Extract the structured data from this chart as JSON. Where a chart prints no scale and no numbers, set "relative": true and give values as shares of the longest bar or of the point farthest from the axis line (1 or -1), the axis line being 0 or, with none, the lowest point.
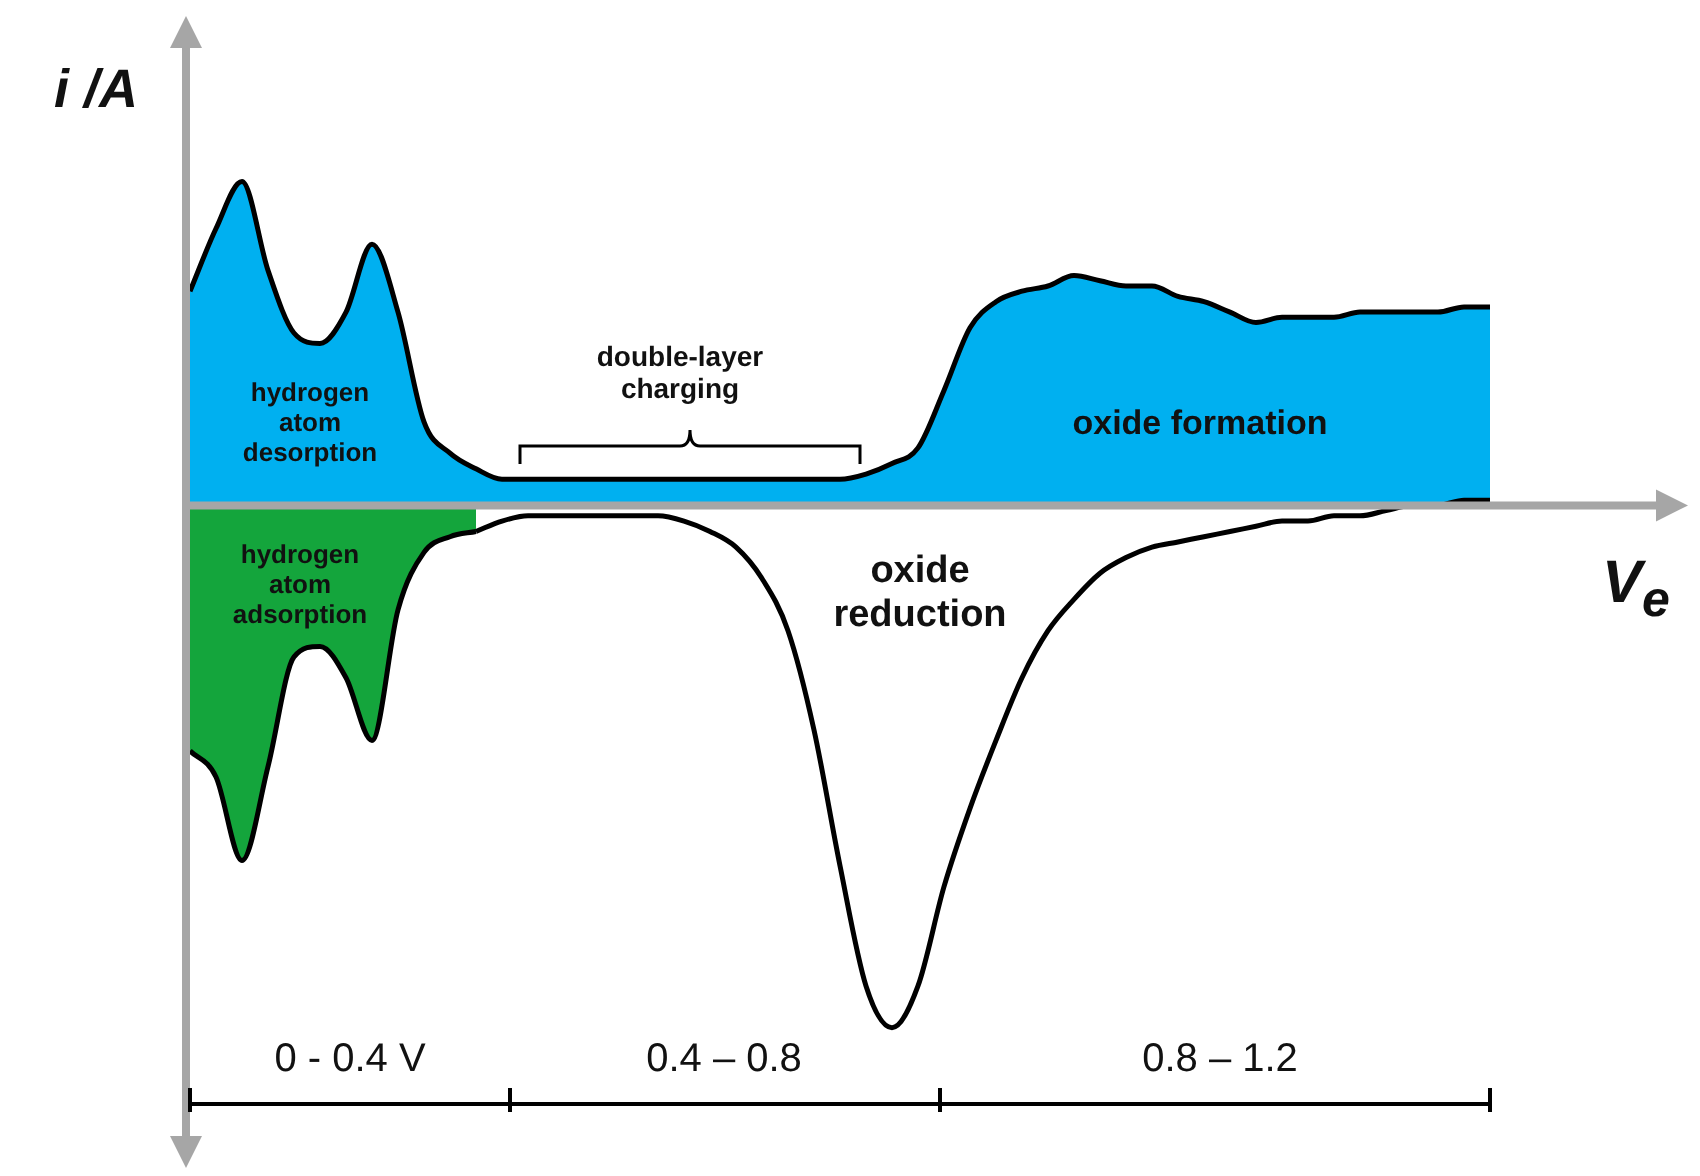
{
  "chart_data": {
    "type": "area",
    "relative": true,
    "ylabel": "i /A",
    "xlabel": "V$_{e}$",
    "categories": [
      null,
      null,
      null,
      null,
      null,
      null,
      null,
      null,
      null,
      null,
      null,
      null,
      null,
      null,
      null,
      null,
      null,
      null,
      null,
      null,
      null,
      null,
      null,
      null,
      null,
      null,
      null,
      null,
      null,
      null,
      null,
      null,
      null,
      null,
      null,
      null,
      null,
      null,
      null,
      null,
      null,
      null,
      null,
      null,
      null,
      null,
      null,
      null,
      null,
      null,
      null
    ],
    "series": [
      {
        "type": "area",
        "color": "#00b0f0",
        "values": [
          0.41,
          0.53,
          0.62,
          0.45,
          0.33,
          0.31,
          0.37,
          0.5,
          0.37,
          0.16,
          0.1,
          0.07,
          0.05,
          0.05,
          0.05,
          0.05,
          0.05,
          0.05,
          0.05,
          0.05,
          0.05,
          0.05,
          0.05,
          0.05,
          0.05,
          0.05,
          0.06,
          0.08,
          0.11,
          0.22,
          0.34,
          0.39,
          0.41,
          0.42,
          0.44,
          0.43,
          0.42,
          0.42,
          0.4,
          0.39,
          0.37,
          0.35,
          0.36,
          0.36,
          0.36,
          0.37,
          0.37,
          0.37,
          0.37,
          0.38,
          0.38
        ]
      },
      {
        "type": "area",
        "color": "#14a53c",
        "values": [
          -0.47,
          -0.52,
          -0.68,
          -0.5,
          -0.29,
          -0.27,
          -0.33,
          -0.45,
          -0.2,
          -0.09,
          -0.06,
          -0.05,
          null,
          null,
          null,
          null,
          null,
          null,
          null,
          null,
          null,
          null,
          null,
          null,
          null,
          null,
          null,
          null,
          null,
          null,
          null,
          null,
          null,
          null,
          null,
          null,
          null,
          null,
          null,
          null,
          null,
          null,
          null,
          null,
          null,
          null,
          null,
          null,
          null,
          null,
          null
        ]
      },
      {
        "type": "line",
        "color": "#000000",
        "values": [
          null,
          null,
          null,
          null,
          null,
          null,
          null,
          null,
          null,
          null,
          null,
          -0.05,
          -0.03,
          -0.02,
          -0.02,
          -0.02,
          -0.02,
          -0.02,
          -0.02,
          -0.03,
          -0.05,
          -0.08,
          -0.14,
          -0.24,
          -0.43,
          -0.69,
          -0.92,
          -1,
          -0.92,
          -0.73,
          -0.58,
          -0.45,
          -0.33,
          -0.24,
          -0.18,
          -0.13,
          -0.1,
          -0.08,
          -0.07,
          -0.06,
          -0.05,
          -0.04,
          -0.03,
          -0.03,
          -0.02,
          -0.02,
          -0.01,
          0,
          0,
          0.01,
          0.01
        ]
      }
    ],
    "annotations": [
      "hydrogen atom desorption",
      "hydrogen atom adsorption",
      "double-layer charging",
      "oxide formation",
      "oxide reduction",
      "0 - 0.4 V",
      "0.4 – 0.8",
      "0.8 – 1.2"
    ]
  }
}
